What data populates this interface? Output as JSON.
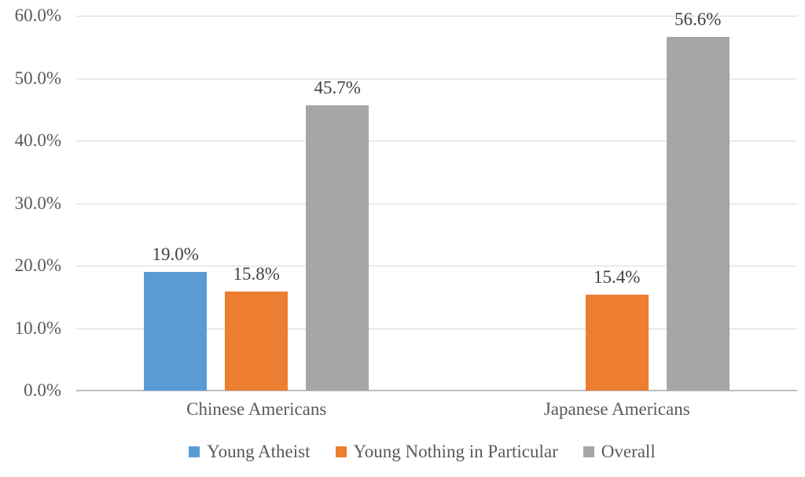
{
  "chart_data": {
    "type": "bar",
    "title": "",
    "xlabel": "",
    "ylabel": "",
    "categories": [
      "Chinese Americans",
      "Japanese Americans"
    ],
    "series": [
      {
        "name": "Young Atheist",
        "color": "#5B9BD5",
        "values": [
          19.0,
          null
        ],
        "labels": [
          "19.0%",
          null
        ]
      },
      {
        "name": "Young Nothing in Particular",
        "color": "#ED7D31",
        "values": [
          15.8,
          15.4
        ],
        "labels": [
          "15.8%",
          "15.4%"
        ]
      },
      {
        "name": "Overall",
        "color": "#A6A6A6",
        "values": [
          45.7,
          56.6
        ],
        "labels": [
          "45.7%",
          "56.6%"
        ]
      }
    ],
    "ylim": [
      0,
      60
    ],
    "ytick_step": 10,
    "ytick_labels": [
      "0.0%",
      "10.0%",
      "20.0%",
      "30.0%",
      "40.0%",
      "50.0%",
      "60.0%"
    ],
    "grid": true,
    "legend_position": "bottom"
  },
  "colors": {
    "background": "#FFFFFF",
    "gridline": "#D9D9D9",
    "axis_line": "#BFBFBF",
    "tick_label": "#595959",
    "category_label": "#595959",
    "data_label": "#404040",
    "legend_label": "#595959"
  }
}
